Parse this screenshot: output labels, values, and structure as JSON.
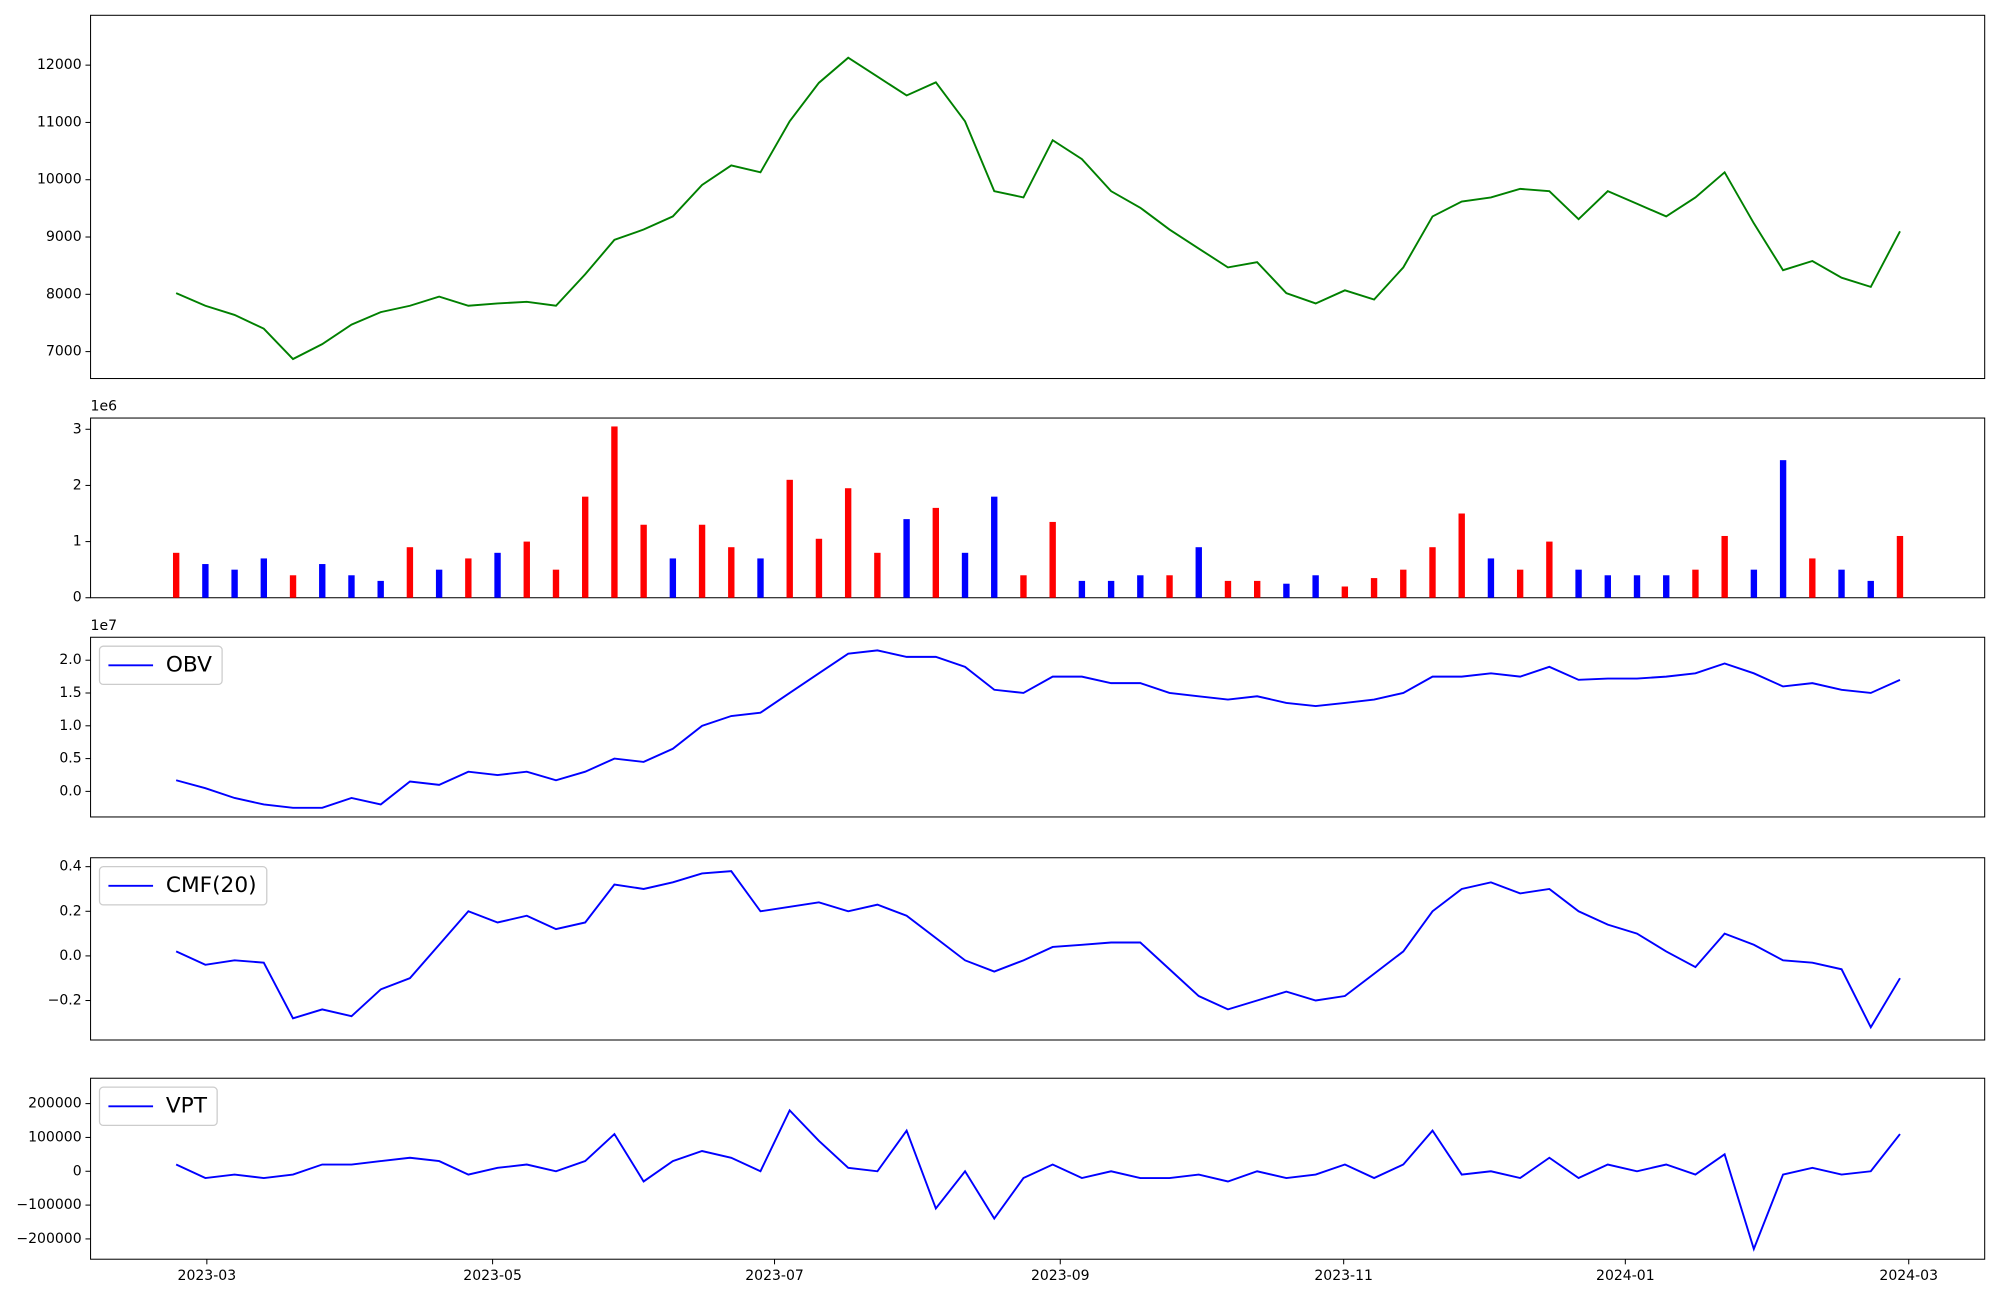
{
  "chart_data": [
    {
      "type": "line",
      "xlim": [
        -2.93,
        61.9
      ],
      "ylim": [
        6530,
        12870
      ],
      "yticks": [
        7000,
        8000,
        9000,
        10000,
        11000,
        12000
      ],
      "series": [
        {
          "color": "green",
          "values": [
            8020,
            7800,
            7640,
            7400,
            6870,
            7130,
            7470,
            7690,
            7800,
            7960,
            7800,
            7840,
            7870,
            7800,
            8350,
            8950,
            9130,
            9360,
            9910,
            10250,
            10130,
            11020,
            11690,
            12130,
            11800,
            11470,
            11700,
            11020,
            9800,
            9690,
            10690,
            10360,
            9800,
            9510,
            9130,
            8800,
            8470,
            8560,
            8020,
            7840,
            8070,
            7910,
            8470,
            9360,
            9620,
            9690,
            9840,
            9800,
            9310,
            9800,
            9580,
            9360,
            9690,
            10130,
            9240,
            8420,
            8580,
            8290,
            8130,
            9100
          ]
        }
      ]
    },
    {
      "type": "bar",
      "xlim": [
        -2.93,
        61.9
      ],
      "ylim": [
        0,
        3200000
      ],
      "offset_text": "1e6",
      "yticks": [
        {
          "value": 0,
          "label": "0"
        },
        {
          "value": 1000000,
          "label": "1"
        },
        {
          "value": 2000000,
          "label": "2"
        },
        {
          "value": 3000000,
          "label": "3"
        }
      ],
      "values": [
        800000,
        600000,
        500000,
        700000,
        400000,
        600000,
        400000,
        300000,
        900000,
        500000,
        700000,
        800000,
        1000000,
        500000,
        1800000,
        3050000,
        1300000,
        700000,
        1300000,
        900000,
        700000,
        2100000,
        1050000,
        1950000,
        800000,
        1400000,
        1600000,
        800000,
        1800000,
        400000,
        1350000,
        300000,
        300000,
        400000,
        400000,
        900000,
        300000,
        300000,
        250000,
        400000,
        200000,
        350000,
        500000,
        900000,
        1500000,
        700000,
        500000,
        1000000,
        500000,
        400000,
        400000,
        400000,
        500000,
        1100000,
        500000,
        2450000,
        700000,
        500000,
        300000,
        1100000
      ],
      "colors": [
        "red",
        "blue",
        "blue",
        "blue",
        "red",
        "blue",
        "blue",
        "blue",
        "red",
        "blue",
        "red",
        "blue",
        "red",
        "red",
        "red",
        "red",
        "red",
        "blue",
        "red",
        "red",
        "blue",
        "red",
        "red",
        "red",
        "red",
        "blue",
        "red",
        "blue",
        "blue",
        "red",
        "red",
        "blue",
        "blue",
        "blue",
        "red",
        "blue",
        "red",
        "red",
        "blue",
        "blue",
        "red",
        "red",
        "red",
        "red",
        "red",
        "blue",
        "red",
        "red",
        "blue",
        "blue",
        "blue",
        "blue",
        "red",
        "red",
        "blue",
        "blue",
        "red",
        "blue",
        "blue",
        "red"
      ]
    },
    {
      "type": "line",
      "xlim": [
        -2.93,
        61.9
      ],
      "ylim": [
        -3900000,
        23500000
      ],
      "offset_text": "1e7",
      "legend": "upper left",
      "yticks": [
        {
          "value": 0,
          "label": "0.0"
        },
        {
          "value": 5000000,
          "label": "0.5"
        },
        {
          "value": 10000000,
          "label": "1.0"
        },
        {
          "value": 15000000,
          "label": "1.5"
        },
        {
          "value": 20000000,
          "label": "2.0"
        }
      ],
      "series": [
        {
          "name": "OBV",
          "color": "blue",
          "values": [
            1700000,
            500000,
            -1000000,
            -2000000,
            -2500000,
            -2500000,
            -1000000,
            -2000000,
            1500000,
            1000000,
            3000000,
            2500000,
            3000000,
            1700000,
            3000000,
            5000000,
            4500000,
            6500000,
            10000000,
            11500000,
            12000000,
            15000000,
            18000000,
            21000000,
            21500000,
            20500000,
            20500000,
            19000000,
            15500000,
            15000000,
            17500000,
            17500000,
            16500000,
            16500000,
            15000000,
            14500000,
            14000000,
            14500000,
            13500000,
            13000000,
            13500000,
            14000000,
            15000000,
            17500000,
            17500000,
            18000000,
            17500000,
            19000000,
            17000000,
            17200000,
            17200000,
            17500000,
            18000000,
            19500000,
            18000000,
            16000000,
            16500000,
            15500000,
            15000000,
            17000000
          ]
        }
      ]
    },
    {
      "type": "line",
      "xlim": [
        -2.93,
        61.9
      ],
      "ylim": [
        -0.377,
        0.44
      ],
      "legend": "upper left",
      "yticks": [
        {
          "value": -0.2,
          "label": "−0.2"
        },
        {
          "value": 0,
          "label": "0.0"
        },
        0.2,
        0.4
      ],
      "series": [
        {
          "name": "CMF(20)",
          "color": "blue",
          "values": [
            0.02,
            -0.04,
            -0.02,
            -0.03,
            -0.28,
            -0.24,
            -0.27,
            -0.15,
            -0.1,
            0.05,
            0.2,
            0.15,
            0.18,
            0.12,
            0.15,
            0.32,
            0.3,
            0.33,
            0.37,
            0.38,
            0.2,
            0.22,
            0.24,
            0.2,
            0.23,
            0.18,
            0.08,
            -0.02,
            -0.07,
            -0.02,
            0.04,
            0.05,
            0.06,
            0.06,
            -0.06,
            -0.18,
            -0.24,
            -0.2,
            -0.16,
            -0.2,
            -0.18,
            -0.08,
            0.02,
            0.2,
            0.3,
            0.33,
            0.28,
            0.3,
            0.2,
            0.14,
            0.1,
            0.02,
            -0.05,
            0.1,
            0.05,
            -0.02,
            -0.03,
            -0.06,
            -0.32,
            -0.1
          ]
        }
      ]
    },
    {
      "type": "line",
      "xlim": [
        -2.93,
        61.9
      ],
      "ylim": [
        -260000,
        275000
      ],
      "legend": "upper left",
      "yticks": [
        {
          "value": -200000,
          "label": "−200000"
        },
        {
          "value": -100000,
          "label": "−100000"
        },
        0,
        100000,
        200000
      ],
      "xticks": [
        {
          "value": 1.05,
          "label": "2023-03"
        },
        {
          "value": 10.83,
          "label": "2023-05"
        },
        {
          "value": 20.48,
          "label": "2023-07"
        },
        {
          "value": 30.26,
          "label": "2023-09"
        },
        {
          "value": 39.96,
          "label": "2023-11"
        },
        {
          "value": 49.6,
          "label": "2024-01"
        },
        {
          "value": 59.3,
          "label": "2024-03"
        }
      ],
      "series": [
        {
          "name": "VPT",
          "color": "blue",
          "values": [
            20000,
            -20000,
            -10000,
            -20000,
            -10000,
            20000,
            20000,
            30000,
            40000,
            30000,
            -10000,
            10000,
            20000,
            0,
            30000,
            110000,
            -30000,
            30000,
            60000,
            40000,
            0,
            180000,
            90000,
            10000,
            0,
            120000,
            -110000,
            0,
            -140000,
            -20000,
            20000,
            -20000,
            0,
            -20000,
            -20000,
            -10000,
            -30000,
            0,
            -20000,
            -10000,
            20000,
            -20000,
            20000,
            120000,
            -10000,
            0,
            -20000,
            40000,
            -20000,
            20000,
            0,
            20000,
            -10000,
            50000,
            -230000,
            -10000,
            10000,
            -10000,
            0,
            110000
          ]
        }
      ]
    }
  ]
}
